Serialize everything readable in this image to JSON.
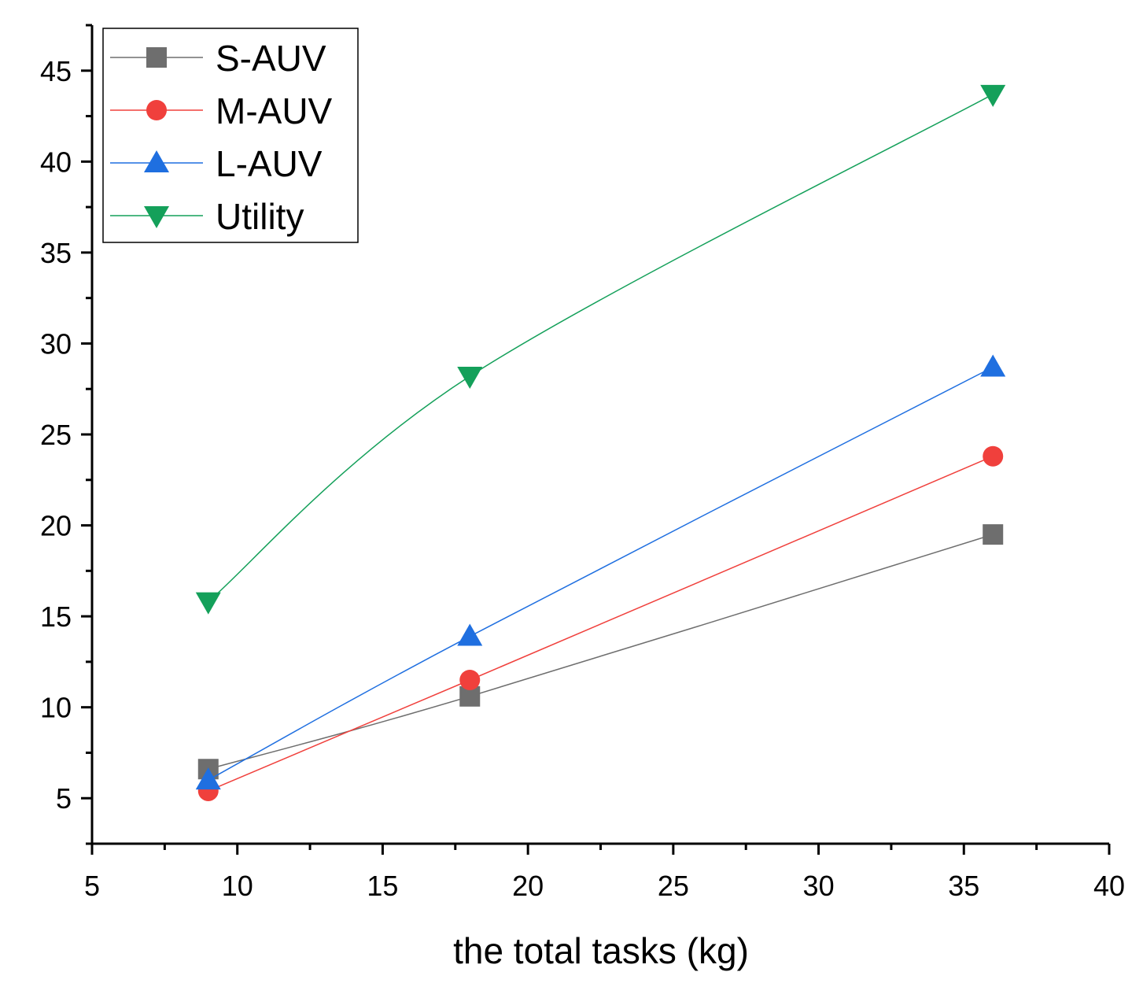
{
  "chart_data": {
    "type": "line",
    "title": "",
    "xlabel": "the total tasks (kg)",
    "ylabel": "",
    "xlim": [
      5,
      40
    ],
    "ylim": [
      2.5,
      47.5
    ],
    "x_ticks": [
      5,
      10,
      15,
      20,
      25,
      30,
      35,
      40
    ],
    "y_ticks": [
      5,
      10,
      15,
      20,
      25,
      30,
      35,
      40,
      45
    ],
    "grid": false,
    "legend_position": "top-left",
    "x": [
      9,
      18,
      36
    ],
    "series": [
      {
        "name": "S-AUV",
        "values": [
          6.6,
          10.6,
          19.5
        ],
        "color": "#6e6e6e",
        "marker": "square"
      },
      {
        "name": "M-AUV",
        "values": [
          5.4,
          11.5,
          23.8
        ],
        "color": "#f0403c",
        "marker": "circle"
      },
      {
        "name": "L-AUV",
        "values": [
          6.0,
          13.9,
          28.7
        ],
        "color": "#1f6fe0",
        "marker": "triangle-up"
      },
      {
        "name": "Utility",
        "values": [
          15.8,
          28.2,
          43.7
        ],
        "color": "#14a05a",
        "marker": "triangle-down"
      }
    ]
  }
}
